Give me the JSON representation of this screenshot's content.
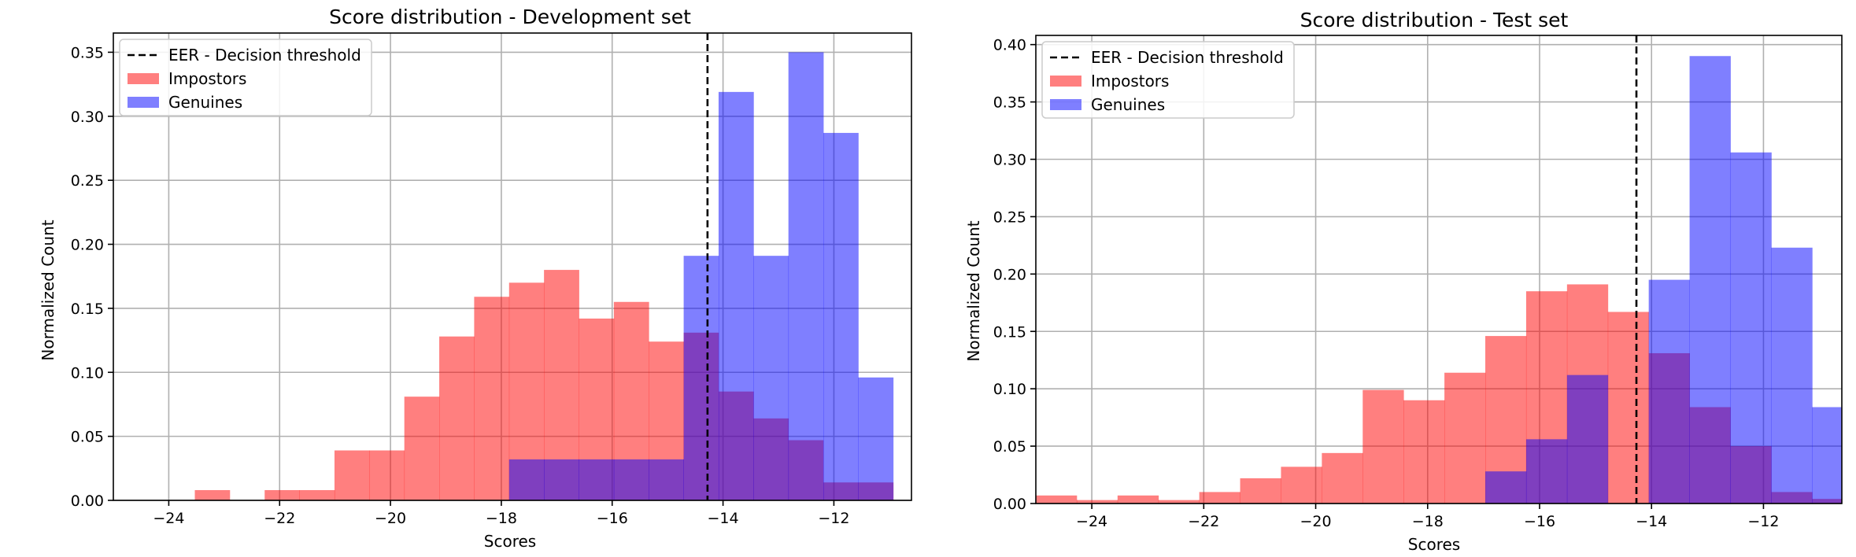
{
  "chart_data": [
    {
      "type": "bar",
      "title": "Score distribution - Development set",
      "xlabel": "Scores",
      "ylabel": "Normalized Count",
      "xlim": [
        -25.0,
        -10.6
      ],
      "ylim": [
        0,
        0.365
      ],
      "xticks": [
        {
          "value": -24,
          "label": "−24"
        },
        {
          "value": -22,
          "label": "−22"
        },
        {
          "value": -20,
          "label": "−20"
        },
        {
          "value": -18,
          "label": "−18"
        },
        {
          "value": -16,
          "label": "−16"
        },
        {
          "value": -14,
          "label": "−14"
        },
        {
          "value": -12,
          "label": "−12"
        }
      ],
      "yticks": [
        {
          "value": 0.0,
          "label": "0.00"
        },
        {
          "value": 0.05,
          "label": "0.05"
        },
        {
          "value": 0.1,
          "label": "0.10"
        },
        {
          "value": 0.15,
          "label": "0.15"
        },
        {
          "value": 0.2,
          "label": "0.20"
        },
        {
          "value": 0.25,
          "label": "0.25"
        },
        {
          "value": 0.3,
          "label": "0.30"
        },
        {
          "value": 0.35,
          "label": "0.35"
        }
      ],
      "grid": true,
      "threshold": -14.28,
      "legend_position": "upper left",
      "legend": [
        "EER - Decision threshold",
        "Impostors",
        "Genuines"
      ],
      "series": [
        {
          "name": "Impostors",
          "color": "#ff0000",
          "alpha": 0.5,
          "edges": [
            -24.16,
            -23.53,
            -22.9,
            -22.27,
            -21.64,
            -21.01,
            -20.38,
            -19.75,
            -19.12,
            -18.49,
            -17.86,
            -17.23,
            -16.6,
            -15.97,
            -15.34,
            -14.71,
            -14.08,
            -13.45,
            -12.82,
            -12.19,
            -11.56,
            -10.93
          ],
          "values": [
            0.0,
            0.008,
            0.0,
            0.008,
            0.008,
            0.039,
            0.039,
            0.081,
            0.128,
            0.159,
            0.17,
            0.18,
            0.142,
            0.155,
            0.124,
            0.131,
            0.085,
            0.064,
            0.047,
            0.014,
            0.014
          ]
        },
        {
          "name": "Genuines",
          "color": "#0000ff",
          "alpha": 0.5,
          "edges": [
            -17.86,
            -17.23,
            -16.6,
            -15.97,
            -15.34,
            -14.71,
            -14.08,
            -13.45,
            -12.82,
            -12.19,
            -11.56,
            -10.93
          ],
          "values": [
            0.032,
            0.032,
            0.032,
            0.032,
            0.032,
            0.191,
            0.319,
            0.191,
            0.35,
            0.287,
            0.096
          ]
        }
      ]
    },
    {
      "type": "bar",
      "title": "Score distribution - Test set",
      "xlabel": "Scores",
      "ylabel": "Normalized Count",
      "xlim": [
        -25.0,
        -10.6
      ],
      "ylim": [
        0,
        0.408
      ],
      "xticks": [
        {
          "value": -24,
          "label": "−24"
        },
        {
          "value": -22,
          "label": "−22"
        },
        {
          "value": -20,
          "label": "−20"
        },
        {
          "value": -18,
          "label": "−18"
        },
        {
          "value": -16,
          "label": "−16"
        },
        {
          "value": -14,
          "label": "−14"
        },
        {
          "value": -12,
          "label": "−12"
        }
      ],
      "yticks": [
        {
          "value": 0.0,
          "label": "0.00"
        },
        {
          "value": 0.05,
          "label": "0.05"
        },
        {
          "value": 0.1,
          "label": "0.10"
        },
        {
          "value": 0.15,
          "label": "0.15"
        },
        {
          "value": 0.2,
          "label": "0.20"
        },
        {
          "value": 0.25,
          "label": "0.25"
        },
        {
          "value": 0.3,
          "label": "0.30"
        },
        {
          "value": 0.35,
          "label": "0.35"
        },
        {
          "value": 0.4,
          "label": "0.40"
        }
      ],
      "grid": true,
      "threshold": -14.27,
      "legend_position": "upper left",
      "legend": [
        "EER - Decision threshold",
        "Impostors",
        "Genuines"
      ],
      "series": [
        {
          "name": "Impostors",
          "color": "#ff0000",
          "alpha": 0.5,
          "edges": [
            -25.0,
            -24.27,
            -23.54,
            -22.81,
            -22.08,
            -21.35,
            -20.62,
            -19.89,
            -19.16,
            -18.43,
            -17.7,
            -16.97,
            -16.24,
            -15.51,
            -14.78,
            -14.05,
            -13.32,
            -12.59,
            -11.86,
            -11.13,
            -10.6
          ],
          "values": [
            0.007,
            0.003,
            0.007,
            0.003,
            0.01,
            0.022,
            0.032,
            0.044,
            0.099,
            0.09,
            0.114,
            0.146,
            0.185,
            0.191,
            0.167,
            0.131,
            0.084,
            0.05,
            0.01,
            0.004
          ]
        },
        {
          "name": "Genuines",
          "color": "#0000ff",
          "alpha": 0.5,
          "edges": [
            -16.97,
            -16.24,
            -15.51,
            -14.78,
            -14.05,
            -13.32,
            -12.59,
            -11.86,
            -11.13,
            -10.6
          ],
          "values": [
            0.028,
            0.056,
            0.112,
            0.0,
            0.195,
            0.39,
            0.306,
            0.223,
            0.084
          ]
        }
      ]
    }
  ]
}
